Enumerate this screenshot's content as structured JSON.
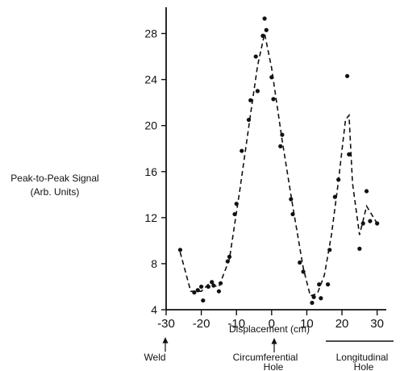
{
  "chart_data": {
    "type": "scatter",
    "ylabel_line1": "Peak-to-Peak Signal",
    "ylabel_line2": "(Arb. Units)",
    "xlabel": "Displacement (cm)",
    "xlim": [
      -30,
      31
    ],
    "ylim": [
      4,
      30
    ],
    "x_ticks": [
      -30,
      -20,
      -10,
      0,
      10,
      20,
      30
    ],
    "y_ticks": [
      4,
      8,
      12,
      16,
      20,
      24,
      28
    ],
    "grid": false,
    "points": [
      {
        "x": -26,
        "y": 9.2
      },
      {
        "x": -22,
        "y": 5.5
      },
      {
        "x": -21,
        "y": 5.7
      },
      {
        "x": -20,
        "y": 6.0
      },
      {
        "x": -19.5,
        "y": 4.8
      },
      {
        "x": -18,
        "y": 6.0
      },
      {
        "x": -17,
        "y": 6.4
      },
      {
        "x": -16.5,
        "y": 6.1
      },
      {
        "x": -15,
        "y": 5.6
      },
      {
        "x": -14.5,
        "y": 6.3
      },
      {
        "x": -12.5,
        "y": 8.2
      },
      {
        "x": -12,
        "y": 8.6
      },
      {
        "x": -10.5,
        "y": 12.3
      },
      {
        "x": -10,
        "y": 13.2
      },
      {
        "x": -8.5,
        "y": 17.8
      },
      {
        "x": -6.5,
        "y": 20.5
      },
      {
        "x": -6,
        "y": 22.2
      },
      {
        "x": -4.5,
        "y": 26.0
      },
      {
        "x": -4,
        "y": 23.0
      },
      {
        "x": -2.5,
        "y": 27.8
      },
      {
        "x": -2,
        "y": 29.3
      },
      {
        "x": -1.5,
        "y": 28.3
      },
      {
        "x": 0,
        "y": 24.2
      },
      {
        "x": 0.5,
        "y": 22.3
      },
      {
        "x": 2.5,
        "y": 18.2
      },
      {
        "x": 3,
        "y": 19.2
      },
      {
        "x": 5.5,
        "y": 13.6
      },
      {
        "x": 6,
        "y": 12.3
      },
      {
        "x": 8,
        "y": 8.1
      },
      {
        "x": 9,
        "y": 7.3
      },
      {
        "x": 11.5,
        "y": 4.6
      },
      {
        "x": 12,
        "y": 5.1
      },
      {
        "x": 13.5,
        "y": 6.2
      },
      {
        "x": 14,
        "y": 5.0
      },
      {
        "x": 16,
        "y": 6.2
      },
      {
        "x": 16.5,
        "y": 9.2
      },
      {
        "x": 18,
        "y": 13.8
      },
      {
        "x": 19,
        "y": 15.3
      },
      {
        "x": 21.5,
        "y": 24.3
      },
      {
        "x": 22,
        "y": 17.5
      },
      {
        "x": 25,
        "y": 9.3
      },
      {
        "x": 26,
        "y": 11.5
      },
      {
        "x": 27,
        "y": 14.3
      },
      {
        "x": 28,
        "y": 11.7
      },
      {
        "x": 30,
        "y": 11.5
      }
    ],
    "fit_line": {
      "style": "dashed",
      "x": [
        -26,
        -23,
        -20,
        -18,
        -15,
        -12,
        -9,
        -6,
        -4,
        -2,
        0,
        3,
        6,
        9,
        11,
        13,
        15,
        17,
        19,
        21,
        22,
        23,
        25,
        27,
        30
      ],
      "y": [
        9.0,
        5.6,
        5.6,
        6.2,
        6.0,
        8.4,
        14.5,
        21.0,
        25.2,
        28.0,
        25.0,
        18.7,
        13.0,
        7.6,
        5.2,
        5.4,
        7.0,
        10.5,
        15.2,
        20.5,
        20.9,
        15.0,
        10.5,
        13.0,
        11.5
      ]
    },
    "annotations": [
      {
        "label_line1": "Weld",
        "label_line2": "",
        "x": -30,
        "style": "arrow"
      },
      {
        "label_line1": "Circumferential",
        "label_line2": "Hole",
        "x": 0,
        "style": "arrow"
      },
      {
        "label_line1": "Longitudinal",
        "label_line2": "Hole",
        "x_range": [
          18,
          35
        ],
        "style": "bracket"
      }
    ]
  }
}
